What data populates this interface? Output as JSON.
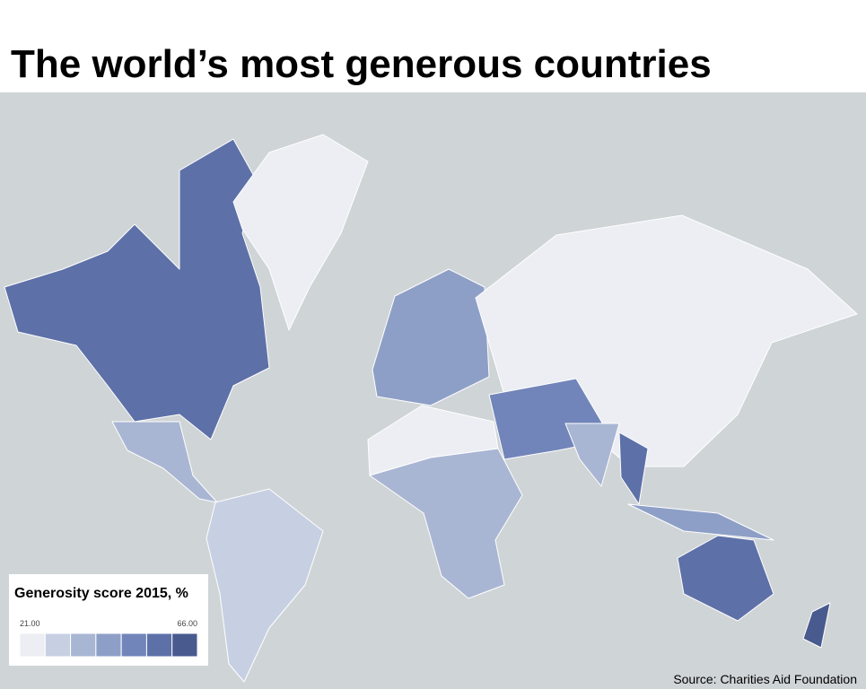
{
  "title": "The world’s most generous countries",
  "legend": {
    "title": "Generosity score 2015, %",
    "min_label": "21.00",
    "max_label": "66.00",
    "colors": [
      "#eceef4",
      "#c7d0e3",
      "#a9b6d3",
      "#8e9fc7",
      "#7285ba",
      "#5d70a8",
      "#485a8e"
    ]
  },
  "source": "Source: Charities Aid Foundation"
}
